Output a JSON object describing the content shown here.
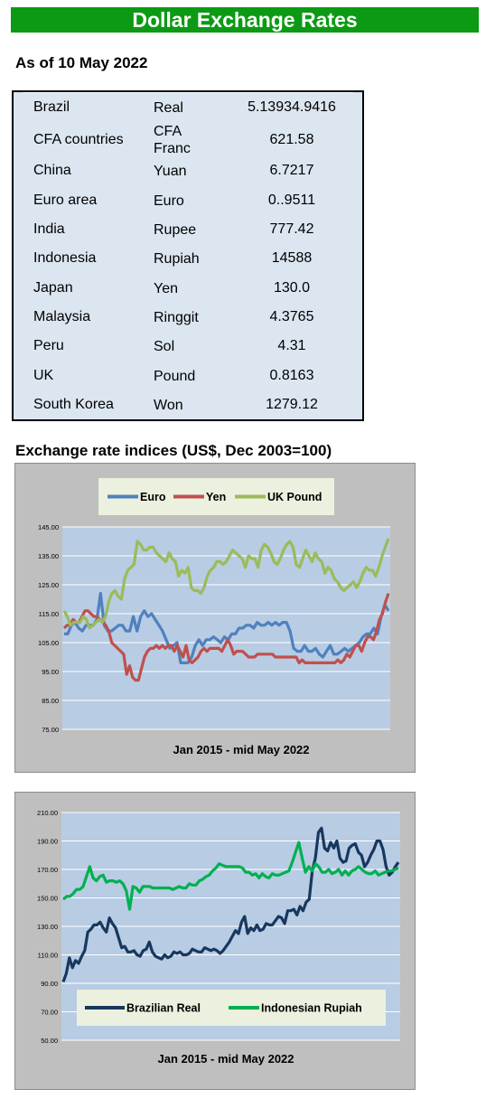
{
  "header": {
    "title": "Dollar Exchange Rates",
    "as_of": "As of 10 May 2022"
  },
  "table": {
    "rows": [
      {
        "country": "Brazil",
        "currency": "Real",
        "rate": "5.13934.9416"
      },
      {
        "country": "CFA countries",
        "currency": "CFA\nFranc",
        "rate": "621.58"
      },
      {
        "country": "China",
        "currency": "Yuan",
        "rate": "6.7217"
      },
      {
        "country": "Euro area",
        "currency": "Euro",
        "rate": "0..9511"
      },
      {
        "country": "India",
        "currency": "Rupee",
        "rate": "777.42"
      },
      {
        "country": "Indonesia",
        "currency": "Rupiah",
        "rate": "14588"
      },
      {
        "country": "Japan",
        "currency": "Yen",
        "rate": "130.0"
      },
      {
        "country": "Malaysia",
        "currency": "Ringgit",
        "rate": "4.3765"
      },
      {
        "country": "Peru",
        "currency": "Sol",
        "rate": "4.31"
      },
      {
        "country": "UK",
        "currency": "Pound",
        "rate": "0.8163"
      },
      {
        "country": "South Korea",
        "currency": "Won",
        "rate": "1279.12"
      }
    ]
  },
  "section_title": "Exchange rate indices (US$, Dec 2003=100)",
  "chart_data": [
    {
      "type": "line",
      "xlabel": "Jan 2015 - mid May 2022",
      "ylim": [
        75,
        145
      ],
      "yticks": [
        "75.00",
        "85.00",
        "95.00",
        "105.00",
        "115.00",
        "125.00",
        "135.00",
        "145.00"
      ],
      "legend_position": "top",
      "grid": true,
      "series": [
        {
          "name": "Euro",
          "color": "#4f81bd",
          "values": [
            108,
            108,
            111,
            112,
            110,
            109,
            111,
            111,
            111,
            113,
            122,
            111,
            109,
            109,
            110,
            111,
            111,
            109,
            109,
            114,
            109,
            114,
            116,
            114,
            115,
            113,
            111,
            109,
            106,
            103,
            104,
            105,
            98,
            98,
            98,
            100,
            104,
            106,
            104,
            106,
            106,
            107,
            106,
            105,
            107,
            106,
            108,
            108,
            110,
            110,
            111,
            111,
            110,
            112,
            111,
            111,
            112,
            111,
            112,
            111,
            112,
            112,
            109,
            103,
            102,
            102,
            104,
            102,
            102,
            103,
            101,
            100,
            102,
            104,
            101,
            101,
            102,
            103,
            102,
            103,
            104,
            105,
            107,
            108,
            108,
            110,
            108,
            114,
            118,
            116
          ]
        },
        {
          "name": "Yen",
          "color": "#c0504d",
          "values": [
            110,
            111,
            111,
            113,
            112,
            112,
            114,
            116,
            116,
            115,
            114,
            114,
            113,
            112,
            111,
            109,
            105,
            104,
            103,
            102,
            101,
            94,
            97,
            93,
            92,
            92,
            96,
            100,
            102,
            103,
            103,
            104,
            103,
            104,
            103,
            104,
            104,
            102,
            104,
            102,
            100,
            104,
            99,
            98,
            99,
            100,
            102,
            103,
            102,
            103,
            103,
            103,
            103,
            102,
            104,
            106,
            104,
            101,
            102,
            102,
            102,
            101,
            100,
            100,
            100,
            101,
            101,
            101,
            101,
            101,
            101,
            100,
            100,
            100,
            100,
            100,
            100,
            100,
            100,
            98,
            99,
            98,
            98,
            98,
            98,
            98,
            98,
            98,
            98,
            98,
            98,
            98,
            99,
            98,
            99,
            101,
            100,
            102,
            104,
            104,
            102,
            105,
            107,
            107,
            106,
            109,
            113,
            115,
            119,
            122
          ]
        },
        {
          "name": "UK Pound",
          "color": "#9bbb59",
          "values": [
            116,
            114,
            111,
            112,
            112,
            112,
            114,
            113,
            110,
            111,
            112,
            113,
            112,
            114,
            119,
            122,
            123,
            121,
            120,
            127,
            130,
            131,
            132,
            140,
            139,
            137,
            137,
            138,
            138,
            136,
            135,
            134,
            133,
            136,
            134,
            133,
            128,
            130,
            129,
            131,
            124,
            123,
            123,
            122,
            124,
            128,
            130,
            131,
            133,
            133,
            132,
            133,
            135,
            137,
            136,
            135,
            134,
            131,
            135,
            134,
            134,
            131,
            137,
            139,
            138,
            136,
            133,
            132,
            134,
            137,
            139,
            140,
            138,
            132,
            131,
            134,
            137,
            135,
            133,
            136,
            134,
            133,
            129,
            131,
            130,
            127,
            126,
            124,
            123,
            124,
            125,
            126,
            124,
            126,
            129,
            131,
            130,
            130,
            128,
            131,
            135,
            138,
            141
          ]
        }
      ]
    },
    {
      "type": "line",
      "xlabel": "Jan 2015 - mid May 2022",
      "ylim": [
        50,
        210
      ],
      "yticks": [
        "50.00",
        "70.00",
        "90.00",
        "110.00",
        "130.00",
        "150.00",
        "170.00",
        "190.00",
        "210.00"
      ],
      "legend_position": "bottom",
      "grid": true,
      "series": [
        {
          "name": "Brazilian Real",
          "color": "#17375e",
          "values": [
            91,
            97,
            108,
            101,
            106,
            104,
            109,
            113,
            126,
            128,
            131,
            131,
            133,
            129,
            126,
            136,
            132,
            129,
            122,
            115,
            116,
            112,
            112,
            113,
            110,
            109,
            113,
            114,
            119,
            112,
            109,
            108,
            107,
            110,
            108,
            109,
            112,
            111,
            112,
            110,
            110,
            111,
            114,
            113,
            112,
            112,
            115,
            114,
            113,
            114,
            113,
            111,
            113,
            116,
            119,
            123,
            127,
            125,
            133,
            137,
            125,
            129,
            127,
            131,
            127,
            128,
            132,
            131,
            131,
            134,
            137,
            136,
            132,
            141,
            141,
            142,
            138,
            144,
            141,
            147,
            149,
            169,
            178,
            196,
            199,
            185,
            183,
            189,
            185,
            190,
            178,
            175,
            176,
            185,
            187,
            188,
            182,
            180,
            172,
            175,
            180,
            184,
            190,
            190,
            184,
            172,
            166,
            168,
            172,
            175
          ]
        },
        {
          "name": "Indonesian Rupiah",
          "color": "#00b050",
          "values": [
            149,
            151,
            151,
            153,
            156,
            156,
            158,
            165,
            172,
            164,
            162,
            165,
            166,
            161,
            162,
            162,
            161,
            162,
            160,
            155,
            142,
            158,
            157,
            154,
            158,
            158,
            158,
            157,
            157,
            157,
            157,
            157,
            157,
            156,
            157,
            158,
            157,
            157,
            160,
            159,
            159,
            162,
            163,
            165,
            166,
            169,
            171,
            174,
            173,
            172,
            172,
            172,
            172,
            172,
            171,
            168,
            168,
            166,
            167,
            164,
            167,
            165,
            164,
            167,
            166,
            166,
            167,
            168,
            169,
            175,
            182,
            189,
            178,
            168,
            172,
            169,
            174,
            172,
            168,
            168,
            170,
            167,
            168,
            170,
            166,
            169,
            166,
            169,
            170,
            172,
            170,
            168,
            167,
            167,
            169,
            166,
            167,
            168,
            169,
            169,
            170,
            171
          ]
        }
      ]
    }
  ]
}
